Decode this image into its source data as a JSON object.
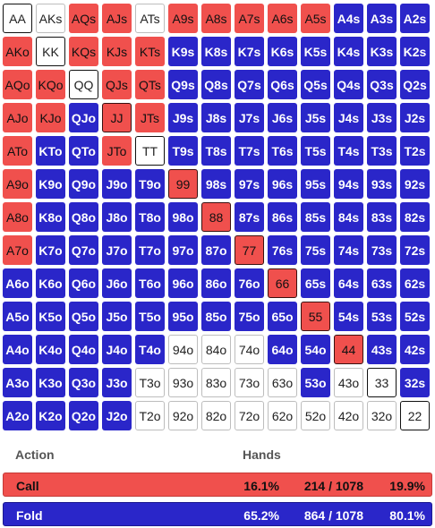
{
  "grid": [
    [
      [
        "AA",
        "white"
      ],
      [
        "AKs",
        "white"
      ],
      [
        "AQs",
        "red"
      ],
      [
        "AJs",
        "red"
      ],
      [
        "ATs",
        "white"
      ],
      [
        "A9s",
        "red"
      ],
      [
        "A8s",
        "red"
      ],
      [
        "A7s",
        "red"
      ],
      [
        "A6s",
        "red"
      ],
      [
        "A5s",
        "red"
      ],
      [
        "A4s",
        "blue"
      ],
      [
        "A3s",
        "blue"
      ],
      [
        "A2s",
        "blue"
      ]
    ],
    [
      [
        "AKo",
        "red"
      ],
      [
        "KK",
        "white"
      ],
      [
        "KQs",
        "red"
      ],
      [
        "KJs",
        "red"
      ],
      [
        "KTs",
        "red"
      ],
      [
        "K9s",
        "blue"
      ],
      [
        "K8s",
        "blue"
      ],
      [
        "K7s",
        "blue"
      ],
      [
        "K6s",
        "blue"
      ],
      [
        "K5s",
        "blue"
      ],
      [
        "K4s",
        "blue"
      ],
      [
        "K3s",
        "blue"
      ],
      [
        "K2s",
        "blue"
      ]
    ],
    [
      [
        "AQo",
        "red"
      ],
      [
        "KQo",
        "red"
      ],
      [
        "QQ",
        "white"
      ],
      [
        "QJs",
        "red"
      ],
      [
        "QTs",
        "red"
      ],
      [
        "Q9s",
        "blue"
      ],
      [
        "Q8s",
        "blue"
      ],
      [
        "Q7s",
        "blue"
      ],
      [
        "Q6s",
        "blue"
      ],
      [
        "Q5s",
        "blue"
      ],
      [
        "Q4s",
        "blue"
      ],
      [
        "Q3s",
        "blue"
      ],
      [
        "Q2s",
        "blue"
      ]
    ],
    [
      [
        "AJo",
        "red"
      ],
      [
        "KJo",
        "red"
      ],
      [
        "QJo",
        "blue"
      ],
      [
        "JJ",
        "red"
      ],
      [
        "JTs",
        "red"
      ],
      [
        "J9s",
        "blue"
      ],
      [
        "J8s",
        "blue"
      ],
      [
        "J7s",
        "blue"
      ],
      [
        "J6s",
        "blue"
      ],
      [
        "J5s",
        "blue"
      ],
      [
        "J4s",
        "blue"
      ],
      [
        "J3s",
        "blue"
      ],
      [
        "J2s",
        "blue"
      ]
    ],
    [
      [
        "ATo",
        "red"
      ],
      [
        "KTo",
        "blue"
      ],
      [
        "QTo",
        "blue"
      ],
      [
        "JTo",
        "red"
      ],
      [
        "TT",
        "white"
      ],
      [
        "T9s",
        "blue"
      ],
      [
        "T8s",
        "blue"
      ],
      [
        "T7s",
        "blue"
      ],
      [
        "T6s",
        "blue"
      ],
      [
        "T5s",
        "blue"
      ],
      [
        "T4s",
        "blue"
      ],
      [
        "T3s",
        "blue"
      ],
      [
        "T2s",
        "blue"
      ]
    ],
    [
      [
        "A9o",
        "red"
      ],
      [
        "K9o",
        "blue"
      ],
      [
        "Q9o",
        "blue"
      ],
      [
        "J9o",
        "blue"
      ],
      [
        "T9o",
        "blue"
      ],
      [
        "99",
        "red"
      ],
      [
        "98s",
        "blue"
      ],
      [
        "97s",
        "blue"
      ],
      [
        "96s",
        "blue"
      ],
      [
        "95s",
        "blue"
      ],
      [
        "94s",
        "blue"
      ],
      [
        "93s",
        "blue"
      ],
      [
        "92s",
        "blue"
      ]
    ],
    [
      [
        "A8o",
        "red"
      ],
      [
        "K8o",
        "blue"
      ],
      [
        "Q8o",
        "blue"
      ],
      [
        "J8o",
        "blue"
      ],
      [
        "T8o",
        "blue"
      ],
      [
        "98o",
        "blue"
      ],
      [
        "88",
        "red"
      ],
      [
        "87s",
        "blue"
      ],
      [
        "86s",
        "blue"
      ],
      [
        "85s",
        "blue"
      ],
      [
        "84s",
        "blue"
      ],
      [
        "83s",
        "blue"
      ],
      [
        "82s",
        "blue"
      ]
    ],
    [
      [
        "A7o",
        "red"
      ],
      [
        "K7o",
        "blue"
      ],
      [
        "Q7o",
        "blue"
      ],
      [
        "J7o",
        "blue"
      ],
      [
        "T7o",
        "blue"
      ],
      [
        "97o",
        "blue"
      ],
      [
        "87o",
        "blue"
      ],
      [
        "77",
        "red"
      ],
      [
        "76s",
        "blue"
      ],
      [
        "75s",
        "blue"
      ],
      [
        "74s",
        "blue"
      ],
      [
        "73s",
        "blue"
      ],
      [
        "72s",
        "blue"
      ]
    ],
    [
      [
        "A6o",
        "blue"
      ],
      [
        "K6o",
        "blue"
      ],
      [
        "Q6o",
        "blue"
      ],
      [
        "J6o",
        "blue"
      ],
      [
        "T6o",
        "blue"
      ],
      [
        "96o",
        "blue"
      ],
      [
        "86o",
        "blue"
      ],
      [
        "76o",
        "blue"
      ],
      [
        "66",
        "red"
      ],
      [
        "65s",
        "blue"
      ],
      [
        "64s",
        "blue"
      ],
      [
        "63s",
        "blue"
      ],
      [
        "62s",
        "blue"
      ]
    ],
    [
      [
        "A5o",
        "blue"
      ],
      [
        "K5o",
        "blue"
      ],
      [
        "Q5o",
        "blue"
      ],
      [
        "J5o",
        "blue"
      ],
      [
        "T5o",
        "blue"
      ],
      [
        "95o",
        "blue"
      ],
      [
        "85o",
        "blue"
      ],
      [
        "75o",
        "blue"
      ],
      [
        "65o",
        "blue"
      ],
      [
        "55",
        "red"
      ],
      [
        "54s",
        "blue"
      ],
      [
        "53s",
        "blue"
      ],
      [
        "52s",
        "blue"
      ]
    ],
    [
      [
        "A4o",
        "blue"
      ],
      [
        "K4o",
        "blue"
      ],
      [
        "Q4o",
        "blue"
      ],
      [
        "J4o",
        "blue"
      ],
      [
        "T4o",
        "blue"
      ],
      [
        "94o",
        "white"
      ],
      [
        "84o",
        "white"
      ],
      [
        "74o",
        "white"
      ],
      [
        "64o",
        "blue"
      ],
      [
        "54o",
        "blue"
      ],
      [
        "44",
        "red"
      ],
      [
        "43s",
        "blue"
      ],
      [
        "42s",
        "blue"
      ]
    ],
    [
      [
        "A3o",
        "blue"
      ],
      [
        "K3o",
        "blue"
      ],
      [
        "Q3o",
        "blue"
      ],
      [
        "J3o",
        "blue"
      ],
      [
        "T3o",
        "white"
      ],
      [
        "93o",
        "white"
      ],
      [
        "83o",
        "white"
      ],
      [
        "73o",
        "white"
      ],
      [
        "63o",
        "white"
      ],
      [
        "53o",
        "blue"
      ],
      [
        "43o",
        "white"
      ],
      [
        "33",
        "white"
      ],
      [
        "32s",
        "blue"
      ]
    ],
    [
      [
        "A2o",
        "blue"
      ],
      [
        "K2o",
        "blue"
      ],
      [
        "Q2o",
        "blue"
      ],
      [
        "J2o",
        "blue"
      ],
      [
        "T2o",
        "white"
      ],
      [
        "92o",
        "white"
      ],
      [
        "82o",
        "white"
      ],
      [
        "72o",
        "white"
      ],
      [
        "62o",
        "white"
      ],
      [
        "52o",
        "white"
      ],
      [
        "42o",
        "white"
      ],
      [
        "32o",
        "white"
      ],
      [
        "22",
        "white"
      ]
    ]
  ],
  "summary": {
    "action_header": "Action",
    "hands_header": "Hands",
    "call": {
      "label": "Call",
      "percent": "16.1%",
      "count": "214 / 1078",
      "range_percent": "19.9%"
    },
    "fold": {
      "label": "Fold",
      "percent": "65.2%",
      "count": "864 / 1078",
      "range_percent": "80.1%"
    }
  },
  "colors": {
    "call": "#f0504d",
    "fold": "#2a26c9",
    "unassigned": "#ffffff"
  }
}
